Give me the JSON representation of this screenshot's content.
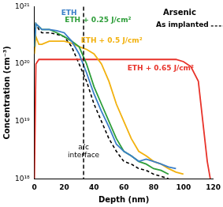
{
  "chart_data": {
    "type": "line",
    "title": "Arsenic",
    "x_label": "Depth (nm)",
    "y_label": "Concentration (cm⁻³)",
    "log": "y",
    "grid": false,
    "xlim": [
      0,
      120
    ],
    "xticks": [
      0,
      20,
      40,
      60,
      80,
      100,
      120
    ],
    "ylim": [
      1e+18,
      1e+21
    ],
    "yticks": [
      {
        "value": 1e+18,
        "label": "10¹⁸"
      },
      {
        "value": 1e+19,
        "label": "10¹⁹"
      },
      {
        "value": 1e+20,
        "label": "10²⁰"
      },
      {
        "value": 1e+21,
        "label": "10²¹"
      }
    ],
    "annotations": [
      {
        "text": "a/c interface",
        "x": 33
      }
    ],
    "x": [
      0,
      1,
      3,
      5,
      10,
      15,
      20,
      25,
      30,
      35,
      40,
      45,
      50,
      55,
      60,
      65,
      70,
      75,
      80,
      85,
      90,
      95,
      100,
      105,
      110,
      113,
      116,
      118,
      120
    ],
    "series": [
      {
        "name": "ETH",
        "color": "#3b7fc8",
        "line_style": "solid",
        "values": [
          2e+20,
          5e+20,
          4.5e+20,
          4e+20,
          4e+20,
          3.8e+20,
          3.5e+20,
          2.5e+20,
          1.5e+20,
          7e+19,
          3e+19,
          1.5e+19,
          8e+18,
          4e+18,
          3e+18,
          2.5e+18,
          2e+18,
          2.2e+18,
          2e+18,
          1.8e+18,
          1.6e+18,
          1.5e+18,
          null,
          null,
          null,
          null,
          null,
          null,
          null
        ]
      },
      {
        "name": "ETH + 0.25 J/cm²",
        "color": "#2e9e3a",
        "line_style": "solid",
        "values": [
          2e+20,
          5e+20,
          4.5e+20,
          4e+20,
          4e+20,
          3.5e+20,
          3e+20,
          2.5e+20,
          2e+20,
          1e+20,
          4e+19,
          2e+19,
          1e+19,
          5e+18,
          3e+18,
          2.5e+18,
          2e+18,
          1.8e+18,
          1.5e+18,
          1.4e+18,
          1.2e+18,
          null,
          null,
          null,
          null,
          null,
          null,
          null,
          null
        ]
      },
      {
        "name": "ETH + 0.5 J/cm²",
        "color": "#f2b10f",
        "line_style": "solid",
        "values": [
          1.5e+20,
          3e+20,
          2.2e+20,
          2.2e+20,
          2.5e+20,
          2.5e+20,
          2.5e+20,
          2.3e+20,
          2e+20,
          1.8e+20,
          1.5e+20,
          1e+20,
          5e+19,
          2e+19,
          1e+19,
          5e+18,
          3e+18,
          2.5e+18,
          2e+18,
          1.8e+18,
          1.5e+18,
          1.3e+18,
          1.2e+18,
          null,
          null,
          null,
          null,
          null,
          null
        ]
      },
      {
        "name": "ETH + 0.65 J/cm²",
        "color": "#e8332a",
        "line_style": "solid",
        "values": [
          1e+18,
          1e+20,
          1.2e+20,
          1.2e+20,
          1.2e+20,
          1.2e+20,
          1.2e+20,
          1.2e+20,
          1.2e+20,
          1.2e+20,
          1.2e+20,
          1.2e+20,
          1.2e+20,
          1.2e+20,
          1.2e+20,
          1.2e+20,
          1.2e+20,
          1.2e+20,
          1.2e+20,
          1.2e+20,
          1.2e+20,
          1.2e+20,
          1.1e+20,
          9e+19,
          5e+19,
          1e+19,
          2e+18,
          1e+18,
          null
        ]
      },
      {
        "name": "As implanted",
        "color": "#000000",
        "line_style": "dashed",
        "values": [
          3e+20,
          5e+20,
          4e+20,
          3.5e+20,
          3.5e+20,
          3.3e+20,
          3e+20,
          2e+20,
          1e+20,
          5e+19,
          2e+19,
          1e+19,
          5e+18,
          3e+18,
          2e+18,
          1.8e+18,
          1.5e+18,
          1.4e+18,
          1.2e+18,
          1.1e+18,
          1e+18,
          null,
          null,
          null,
          null,
          null,
          null,
          null,
          null
        ]
      }
    ]
  }
}
